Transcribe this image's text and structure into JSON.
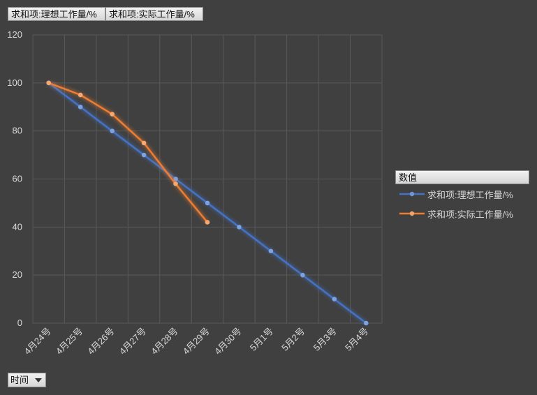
{
  "pivot_fields": {
    "value_btn_1": "求和项:理想工作量/%",
    "value_btn_2": "求和项:实际工作量/%",
    "legend_title": "数值",
    "axis_btn": "时间"
  },
  "colors": {
    "ideal": "#4472c4",
    "actual": "#ed7d31",
    "grid": "#595959",
    "text": "#d9d9d9",
    "background": "#404040"
  },
  "chart_data": {
    "type": "line",
    "title": "",
    "xlabel": "",
    "ylabel": "",
    "ylim": [
      0,
      120
    ],
    "yticks": [
      "0",
      "20",
      "40",
      "60",
      "80",
      "100",
      "120"
    ],
    "categories": [
      "4月24号",
      "4月25号",
      "4月26号",
      "4月27号",
      "4月28号",
      "4月29号",
      "4月30号",
      "5月1号",
      "5月2号",
      "5月3号",
      "5月4号"
    ],
    "series": [
      {
        "name": "求和项:理想工作量/%",
        "values": [
          100,
          90,
          80,
          70,
          60,
          50,
          40,
          30,
          20,
          10,
          0
        ]
      },
      {
        "name": "求和项:实际工作量/%",
        "values": [
          100,
          95,
          87,
          75,
          58,
          42,
          null,
          null,
          null,
          null,
          null
        ]
      }
    ],
    "legend": "right",
    "grid": true
  }
}
